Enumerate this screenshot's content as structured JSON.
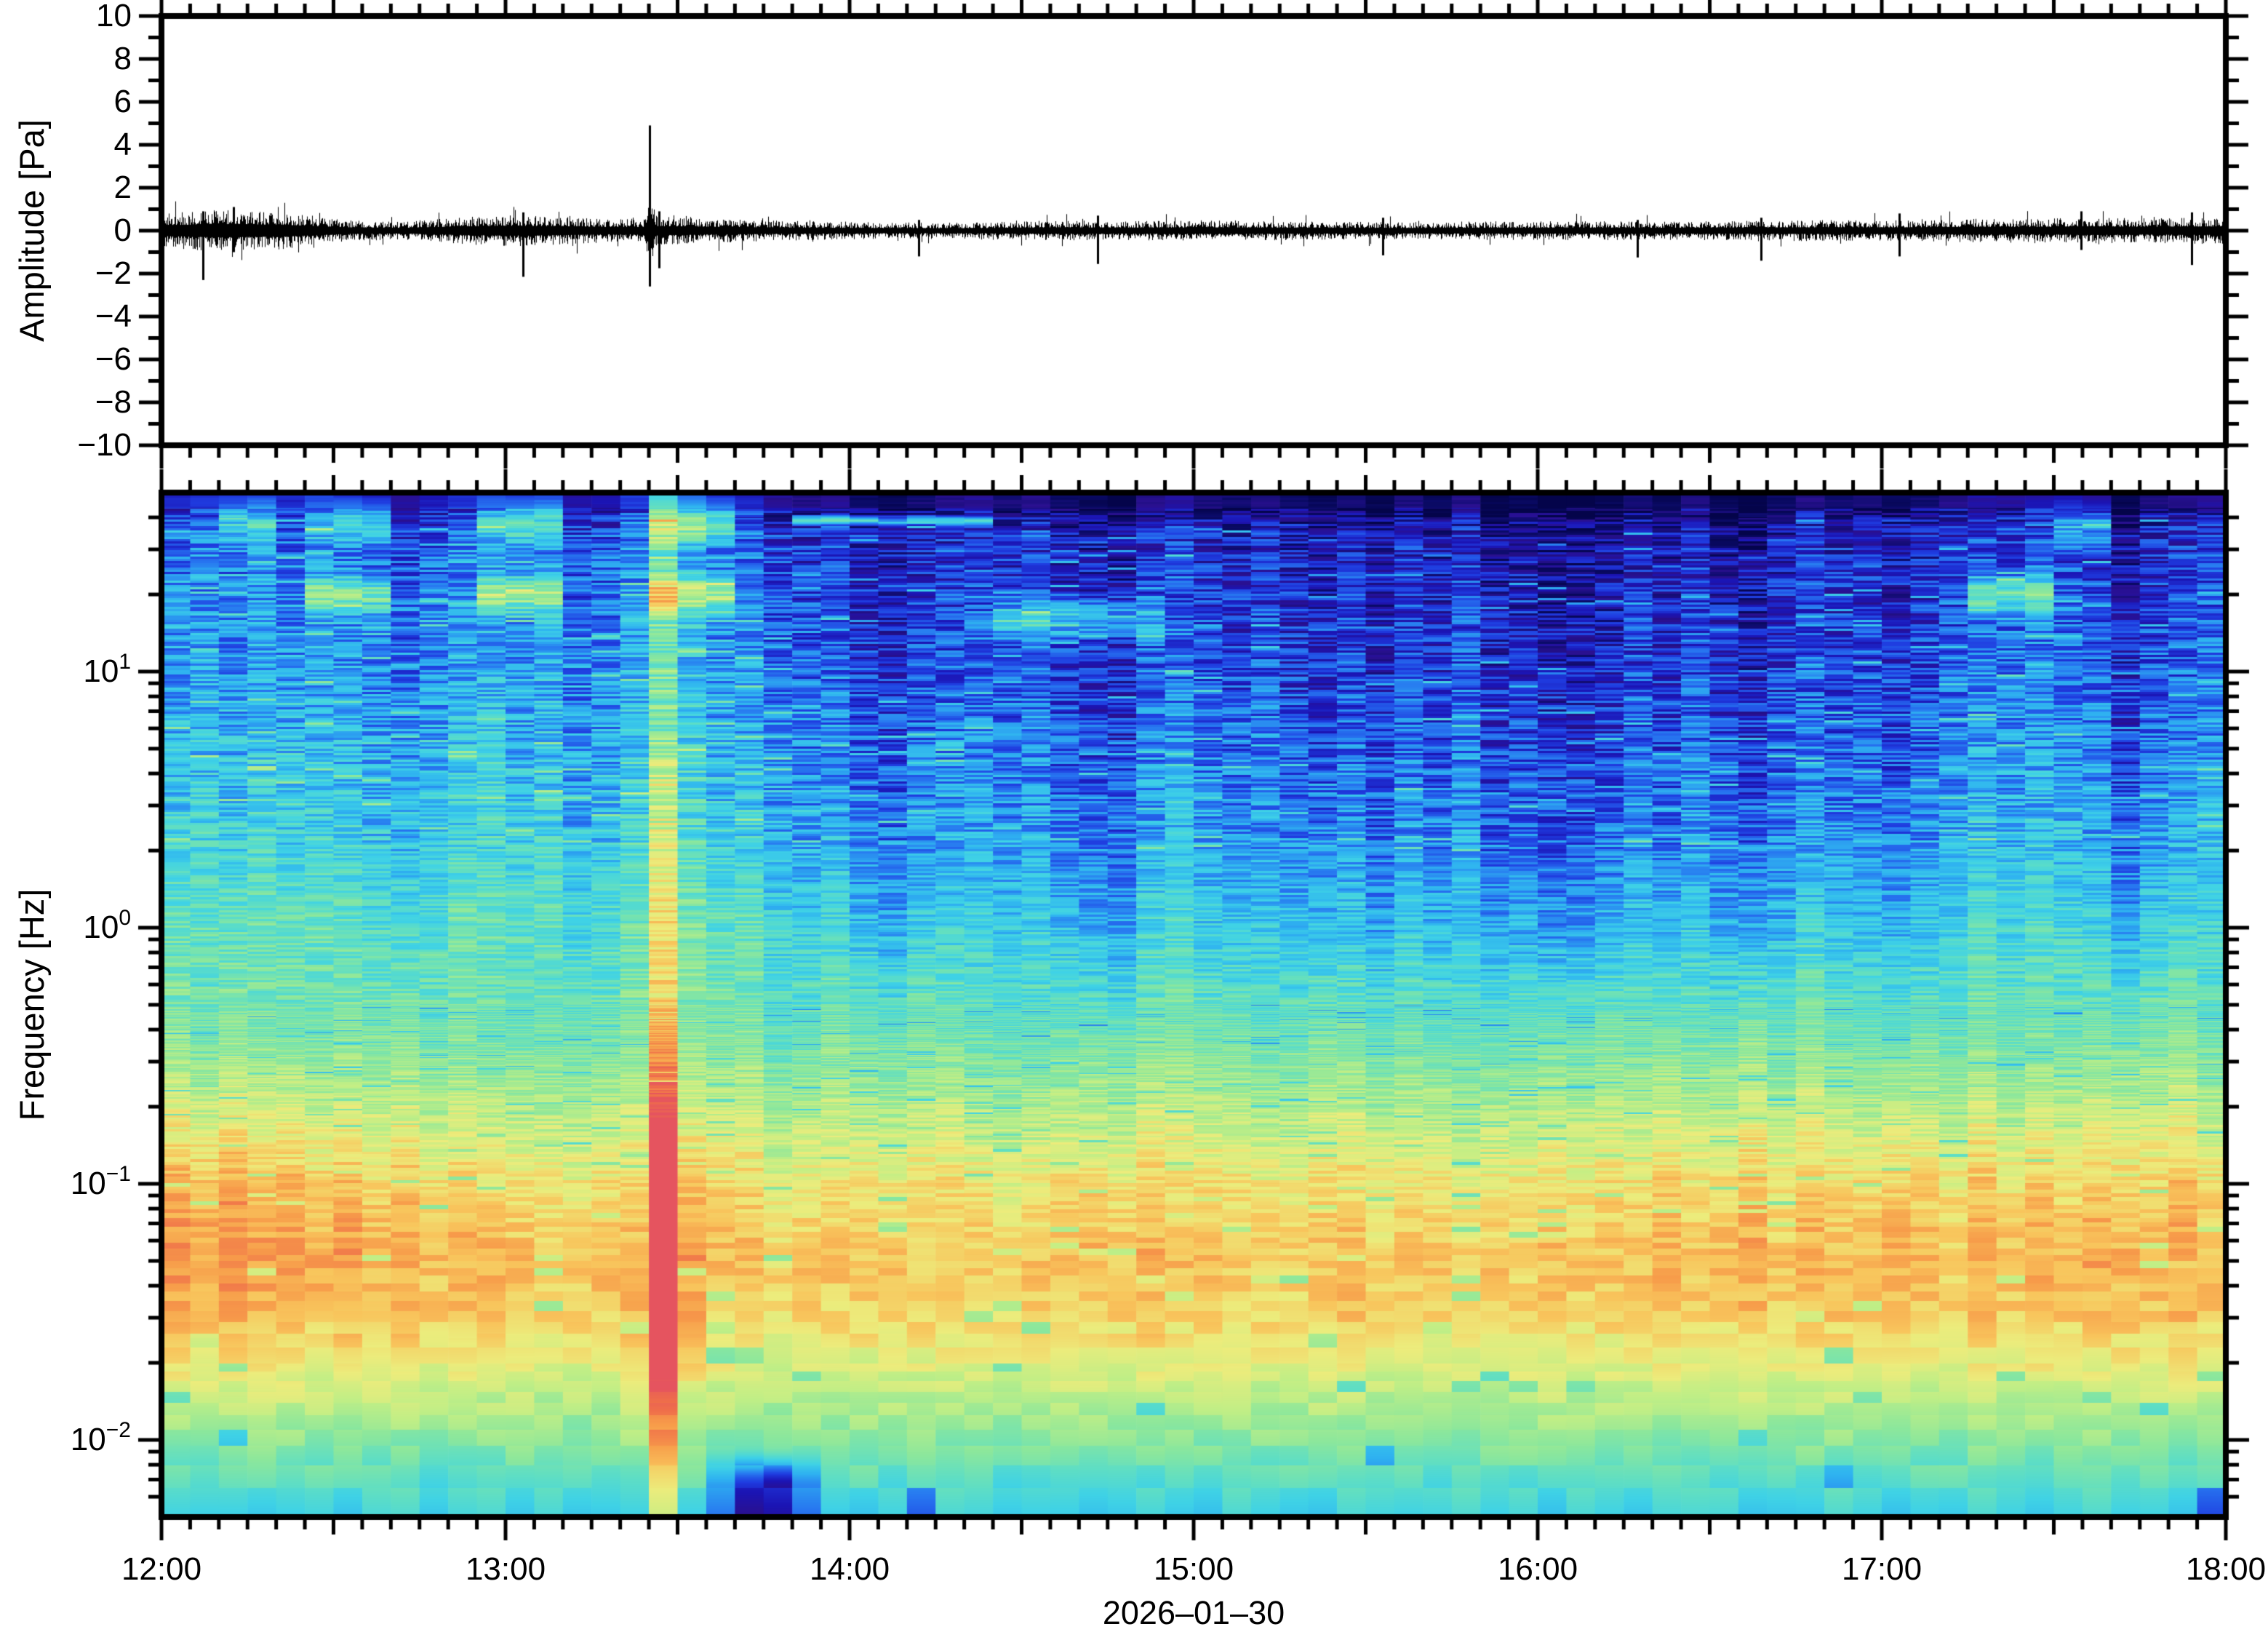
{
  "figure": {
    "background": "#ffffff",
    "frame_color": "#000000",
    "trace_color": "#000000"
  },
  "chart_data": [
    {
      "type": "line",
      "title": "infrasound pressure waveform",
      "ylabel": "Amplitude [Pa]",
      "ylim": [
        -10,
        10
      ],
      "ytick_values": [
        10,
        8,
        6,
        4,
        2,
        0,
        -2,
        -4,
        -6,
        -8,
        -10
      ],
      "ytick_labels": [
        "10",
        "8",
        "6",
        "4",
        "2",
        "0",
        "−2",
        "−4",
        "−6",
        "−8",
        "−10"
      ],
      "x_start": "12:00",
      "x_end": "18:00",
      "x_span_hours": 6,
      "envelope_pa": [
        [
          0.0,
          0.5
        ],
        [
          0.08,
          0.55
        ],
        [
          0.15,
          0.62
        ],
        [
          0.25,
          0.58
        ],
        [
          0.35,
          0.55
        ],
        [
          0.45,
          0.42
        ],
        [
          0.55,
          0.3
        ],
        [
          0.7,
          0.26
        ],
        [
          0.85,
          0.38
        ],
        [
          1.0,
          0.46
        ],
        [
          1.15,
          0.42
        ],
        [
          1.3,
          0.34
        ],
        [
          1.4,
          0.35
        ],
        [
          1.418,
          1.0
        ],
        [
          1.44,
          0.42
        ],
        [
          1.55,
          0.38
        ],
        [
          1.7,
          0.32
        ],
        [
          1.9,
          0.27
        ],
        [
          2.1,
          0.24
        ],
        [
          2.35,
          0.23
        ],
        [
          2.6,
          0.3
        ],
        [
          2.85,
          0.28
        ],
        [
          3.1,
          0.3
        ],
        [
          3.35,
          0.27
        ],
        [
          3.6,
          0.25
        ],
        [
          3.85,
          0.27
        ],
        [
          4.1,
          0.28
        ],
        [
          4.35,
          0.27
        ],
        [
          4.6,
          0.29
        ],
        [
          4.85,
          0.31
        ],
        [
          5.05,
          0.3
        ],
        [
          5.25,
          0.36
        ],
        [
          5.45,
          0.34
        ],
        [
          5.6,
          0.4
        ],
        [
          5.75,
          0.36
        ],
        [
          5.9,
          0.38
        ],
        [
          6.0,
          0.4
        ]
      ],
      "spikes_pa": [
        [
          0.12,
          0.9,
          -2.3
        ],
        [
          0.21,
          1.1,
          -1.0
        ],
        [
          1.05,
          0.85,
          -2.15
        ],
        [
          1.418,
          4.9,
          -2.6
        ],
        [
          1.447,
          0.9,
          -1.75
        ],
        [
          2.2,
          0.5,
          -1.2
        ],
        [
          2.72,
          0.7,
          -1.55
        ],
        [
          3.55,
          0.6,
          -1.15
        ],
        [
          4.29,
          0.5,
          -1.25
        ],
        [
          4.65,
          0.6,
          -1.4
        ],
        [
          5.05,
          0.8,
          -1.2
        ],
        [
          5.58,
          0.9,
          -0.9
        ],
        [
          5.9,
          0.85,
          -1.6
        ]
      ]
    },
    {
      "type": "heatmap",
      "title": "spectrogram",
      "ylabel": "Frequency [Hz]",
      "yscale": "log",
      "flim_hz": [
        0.005,
        50
      ],
      "ytick_base": "10",
      "ytick_exponents": [
        "1",
        "0",
        "−1",
        "−2"
      ],
      "xtick_labels": [
        "12:00",
        "13:00",
        "14:00",
        "15:00",
        "16:00",
        "17:00",
        "18:00"
      ],
      "xlabel_date": "2026–01–30",
      "time_bin_minutes": 5,
      "n_time_bins": 72,
      "freq_profile_log10hz_value": [
        [
          1.7,
          0.04
        ],
        [
          1.64,
          0.05
        ],
        [
          1.55,
          0.13
        ],
        [
          1.3,
          0.17
        ],
        [
          1.0,
          0.2
        ],
        [
          0.7,
          0.24
        ],
        [
          0.3,
          0.3
        ],
        [
          0.0,
          0.37
        ],
        [
          -0.3,
          0.47
        ],
        [
          -0.7,
          0.6
        ],
        [
          -1.0,
          0.7
        ],
        [
          -1.3,
          0.76
        ],
        [
          -1.52,
          0.74
        ],
        [
          -1.7,
          0.68
        ],
        [
          -2.0,
          0.55
        ],
        [
          -2.15,
          0.47
        ],
        [
          -2.3,
          0.4
        ]
      ],
      "hf_mod_per_bin": [
        0.12,
        0.14,
        0.11,
        0.15,
        0.12,
        0.14,
        0.12,
        0.09,
        0.07,
        0.1,
        0.14,
        0.15,
        0.12,
        0.14,
        0.07,
        0.09,
        0.11,
        0.17,
        0.14,
        0.11,
        0.12,
        0.06,
        0.04,
        0.06,
        0.0,
        -0.02,
        0.02,
        0.04,
        0.06,
        0.03,
        0.05,
        0.0,
        -0.02,
        -0.04,
        0.05,
        0.07,
        0.03,
        0.01,
        0.04,
        0.0,
        -0.02,
        0.02,
        -0.03,
        0.03,
        -0.01,
        0.04,
        -0.04,
        -0.02,
        -0.06,
        -0.05,
        -0.03,
        0.02,
        -0.02,
        0.03,
        -0.03,
        -0.05,
        0.0,
        0.04,
        0.01,
        0.02,
        -0.01,
        0.01,
        0.05,
        0.08,
        0.07,
        0.09,
        0.07,
        0.05,
        -0.03,
        0.03,
        0.05,
        0.07
      ],
      "lf_mod_per_bin": [
        0.12,
        0.13,
        0.14,
        0.11,
        0.12,
        0.09,
        0.11,
        0.07,
        0.09,
        0.05,
        0.07,
        0.08,
        0.06,
        0.04,
        0.03,
        0.05,
        0.03,
        0.24,
        0.08,
        0.05,
        0.04,
        0.02,
        0.04,
        0.02,
        0.03,
        0.05,
        0.02,
        0.04,
        0.06,
        0.03,
        0.04,
        0.06,
        0.08,
        0.05,
        0.07,
        0.04,
        0.06,
        0.03,
        0.05,
        0.02,
        0.04,
        0.06,
        0.03,
        0.05,
        0.04,
        0.02,
        0.05,
        0.03,
        0.06,
        0.04,
        0.03,
        0.05,
        0.07,
        0.04,
        0.06,
        0.08,
        0.05,
        0.07,
        0.06,
        0.08,
        0.1,
        0.07,
        0.05,
        0.08,
        0.06,
        0.09,
        0.07,
        0.1,
        0.08,
        0.06,
        0.09,
        0.07
      ],
      "tones": [
        {
          "f_hz": 38,
          "t": [
            0.13,
            0.35
          ],
          "amp": 0.2,
          "sigma_log": 0.055
        },
        {
          "f_hz": 38,
          "t": [
            0.43,
            0.67
          ],
          "amp": 0.22,
          "sigma_log": 0.055
        },
        {
          "f_hz": 38,
          "t": [
            0.93,
            1.2
          ],
          "amp": 0.24,
          "sigma_log": 0.055
        },
        {
          "f_hz": 38,
          "t": [
            1.42,
            1.7
          ],
          "amp": 0.26,
          "sigma_log": 0.055
        },
        {
          "f_hz": 39,
          "t": [
            1.83,
            2.45
          ],
          "amp": 0.3,
          "sigma_log": 0.012
        },
        {
          "f_hz": 38,
          "t": [
            5.5,
            5.68
          ],
          "amp": 0.18,
          "sigma_log": 0.05
        },
        {
          "f_hz": 20,
          "t": [
            0.42,
            0.67
          ],
          "amp": 0.26,
          "sigma_log": 0.05
        },
        {
          "f_hz": 20,
          "t": [
            0.9,
            1.17
          ],
          "amp": 0.3,
          "sigma_log": 0.05
        },
        {
          "f_hz": 20,
          "t": [
            1.4,
            1.7
          ],
          "amp": 0.32,
          "sigma_log": 0.05
        },
        {
          "f_hz": 16,
          "t": [
            2.4,
            2.9
          ],
          "amp": 0.22,
          "sigma_log": 0.05
        },
        {
          "f_hz": 20,
          "t": [
            5.25,
            5.5
          ],
          "amp": 0.26,
          "sigma_log": 0.05
        }
      ],
      "event": {
        "t_hours": 1.418,
        "boost_low": 0.28,
        "boost_mid": 0.22,
        "boost_high": 0.16,
        "neighbor_boost": 0.04
      },
      "cold_patch": {
        "t": [
          1.65,
          1.85
        ],
        "f_max_hz": 0.0095,
        "amp": -0.3
      },
      "colormap_stops": [
        [
          0.0,
          "#04044a"
        ],
        [
          0.05,
          "#0b0b6a"
        ],
        [
          0.1,
          "#2a1090"
        ],
        [
          0.14,
          "#1b14b4"
        ],
        [
          0.2,
          "#1f3ce0"
        ],
        [
          0.27,
          "#2776f0"
        ],
        [
          0.34,
          "#2fb3f0"
        ],
        [
          0.41,
          "#3fd2e6"
        ],
        [
          0.48,
          "#5fdec4"
        ],
        [
          0.56,
          "#8ce79c"
        ],
        [
          0.64,
          "#c0ee86"
        ],
        [
          0.72,
          "#ecec7c"
        ],
        [
          0.8,
          "#f8c55c"
        ],
        [
          0.87,
          "#f79c4a"
        ],
        [
          0.94,
          "#ef6f4a"
        ],
        [
          1.0,
          "#e5545f"
        ]
      ]
    }
  ]
}
